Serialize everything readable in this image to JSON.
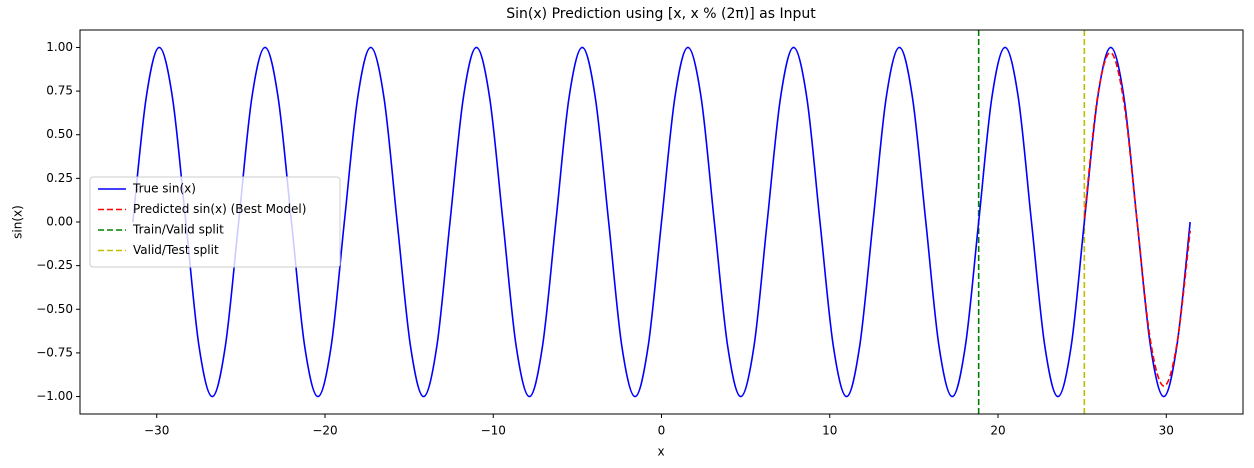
{
  "chart_data": {
    "type": "line",
    "title": "Sin(x) Prediction using [x, x % (2π)] as Input",
    "x_label": "x",
    "y_label": "sin(x)",
    "xlim": [
      -34.56,
      34.56
    ],
    "ylim": [
      -1.1,
      1.1
    ],
    "xticks": [
      {
        "value": -30,
        "label": "−30"
      },
      {
        "value": -20,
        "label": "−20"
      },
      {
        "value": -10,
        "label": "−10"
      },
      0,
      10,
      20,
      30
    ],
    "yticks": [
      {
        "value": -1,
        "label": "−1.00"
      },
      {
        "value": -0.75,
        "label": "−0.75"
      },
      {
        "value": -0.5,
        "label": "−0.50"
      },
      {
        "value": -0.25,
        "label": "−0.25"
      },
      {
        "value": 0,
        "label": "0.00"
      },
      {
        "value": 0.25,
        "label": "0.25"
      },
      {
        "value": 0.5,
        "label": "0.50"
      },
      {
        "value": 0.75,
        "label": "0.75"
      },
      {
        "value": 1,
        "label": "1.00"
      }
    ],
    "grid": false,
    "legend_position": "center left",
    "series": [
      {
        "name": "True sin(x)",
        "color": "#0000ff",
        "dashed": false,
        "x": [
          -31.42,
          -30.63,
          -29.85,
          -29.06,
          -28.27,
          -27.49,
          -26.7,
          -25.92,
          -25.13,
          -24.35,
          -23.56,
          -22.78,
          -21.99,
          -21.21,
          -20.42,
          -19.63,
          -18.85,
          -18.06,
          -17.28,
          -16.49,
          -15.71,
          -14.92,
          -14.14,
          -13.35,
          -12.57,
          -11.78,
          -11.0,
          -10.21,
          -9.42,
          -8.64,
          -7.85,
          -7.07,
          -6.28,
          -5.5,
          -4.71,
          -3.93,
          -3.14,
          -2.36,
          -1.57,
          -0.79,
          0,
          0.79,
          1.57,
          2.36,
          3.14,
          3.93,
          4.71,
          5.5,
          6.28,
          7.07,
          7.85,
          8.64,
          9.42,
          10.21,
          11.0,
          11.78,
          12.57,
          13.35,
          14.14,
          14.92,
          15.71,
          16.49,
          17.28,
          18.06,
          18.85,
          19.63,
          20.42,
          21.21,
          21.99,
          22.78,
          23.56,
          24.35,
          25.13,
          25.92,
          26.7,
          27.49,
          28.27,
          29.06,
          29.85,
          30.63,
          31.42
        ],
        "values": [
          0,
          0.71,
          1,
          0.71,
          0,
          -0.71,
          -1,
          -0.71,
          0,
          0.71,
          1,
          0.71,
          0,
          -0.71,
          -1,
          -0.71,
          0,
          0.71,
          1,
          0.71,
          0,
          -0.71,
          -1,
          -0.71,
          0,
          0.71,
          1,
          0.71,
          0,
          -0.71,
          -1,
          -0.71,
          0,
          0.71,
          1,
          0.71,
          0,
          -0.71,
          -1,
          -0.71,
          0,
          0.71,
          1,
          0.71,
          0,
          -0.71,
          -1,
          -0.71,
          0,
          0.71,
          1,
          0.71,
          0,
          -0.71,
          -1,
          -0.71,
          0,
          0.71,
          1,
          0.71,
          0,
          -0.71,
          -1,
          -0.71,
          0,
          0.71,
          1,
          0.71,
          0,
          -0.71,
          -1,
          -0.71,
          0,
          0.71,
          1,
          0.71,
          0,
          -0.71,
          -1,
          -0.71,
          0
        ]
      },
      {
        "name": "Predicted sin(x) (Best Model)",
        "color": "#ff0000",
        "dashed": true,
        "x": [
          25.13,
          25.92,
          26.7,
          27.49,
          28.27,
          29.06,
          29.85,
          30.63,
          31.42
        ],
        "values": [
          0.02,
          0.72,
          0.97,
          0.68,
          0.0,
          -0.68,
          -0.94,
          -0.7,
          -0.05
        ]
      }
    ],
    "vlines": [
      {
        "name": "Train/Valid split",
        "color": "#008000",
        "x": 18.85
      },
      {
        "name": "Valid/Test split",
        "color": "#bfbf00",
        "x": 25.13
      }
    ]
  }
}
